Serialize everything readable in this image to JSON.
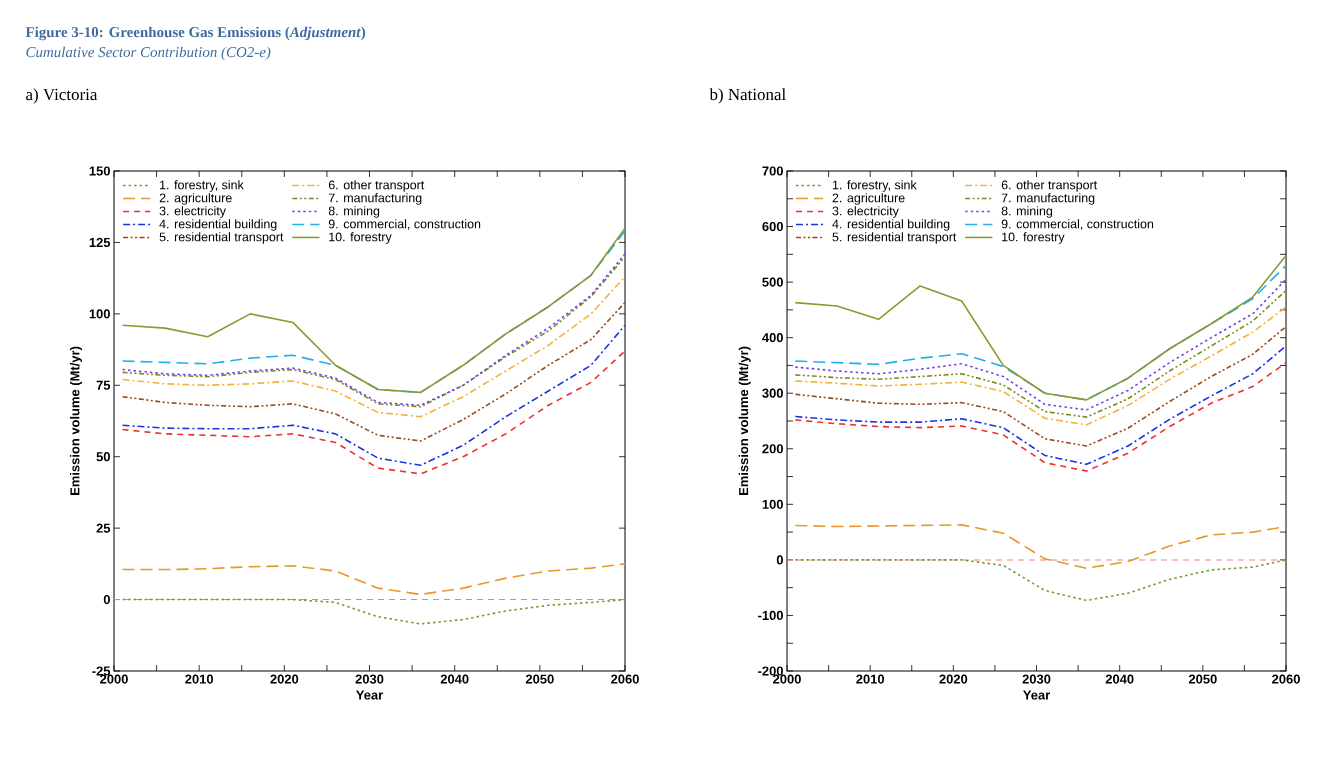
{
  "chart_data": [
    {
      "type": "line",
      "title": "a) Victoria",
      "annotations": [
        "Figure 3-10: Greenhouse Gas Emissions (*Adjustment*)",
        "Cumulative Sector Contribution (CO2-e)"
      ],
      "xlabel": "Year",
      "ylabel": "Emission volume (Mt/yr)",
      "x": [
        2001,
        2006,
        2011,
        2016,
        2021,
        2026,
        2031,
        2036,
        2041,
        2046,
        2051,
        2056,
        2060
      ],
      "xlim": [
        2000,
        2060
      ],
      "xticks": [
        2000,
        {
          "value": 2005,
          "label": null
        },
        2010,
        {
          "value": 2015,
          "label": null
        },
        2020,
        {
          "value": 2025,
          "label": null
        },
        2030,
        {
          "value": 2035,
          "label": null
        },
        2040,
        {
          "value": 2045,
          "label": null
        },
        2050,
        {
          "value": 2055,
          "label": null
        },
        2060
      ],
      "ylim": [
        -25,
        150
      ],
      "yticks": [
        -25,
        0,
        25,
        50,
        75,
        100,
        125,
        150
      ],
      "legend": "top left",
      "ref_lines": [
        {
          "axis": "y",
          "value": 0,
          "color": "#f08080",
          "line_style": "dashed"
        }
      ],
      "series": [
        {
          "name": "1. forestry, sink",
          "color": "#7a9a2a",
          "line_style": "dotted",
          "values": [
            0,
            0,
            0,
            0,
            0,
            -1,
            -6,
            -8.5,
            -7,
            -4,
            -2,
            -1,
            0
          ]
        },
        {
          "name": "2. agriculture",
          "color": "#e8982a",
          "line_style": "longdashed",
          "values": [
            10.5,
            10.5,
            10.8,
            11.5,
            11.8,
            10,
            4,
            1.8,
            4,
            7.5,
            10,
            11,
            12.5
          ]
        },
        {
          "name": "3. electricity",
          "color": "#ee3030",
          "line_style": "dashed",
          "values": [
            59.5,
            58,
            57.5,
            57,
            58,
            55,
            46,
            44,
            50,
            58,
            68,
            76,
            87
          ]
        },
        {
          "name": "4. residential building",
          "color": "#1a35e0",
          "line_style": "dashdotted",
          "values": [
            61,
            60,
            59.8,
            59.8,
            61,
            58,
            49.5,
            47,
            54,
            64,
            73,
            82,
            96
          ]
        },
        {
          "name": "5. residential transport",
          "color": "#9b4a1e",
          "line_style": "dashdotdotted",
          "values": [
            71,
            69,
            68,
            67.5,
            68.5,
            65,
            57.5,
            55.5,
            63,
            72,
            82,
            91,
            104
          ]
        },
        {
          "name": "6. other transport",
          "color": "#f5b040",
          "line_style": "dashdotted",
          "values": [
            77,
            75.5,
            75,
            75.5,
            76.5,
            73,
            65.5,
            64,
            71,
            80,
            89,
            100,
            113
          ]
        },
        {
          "name": "7. manufacturing",
          "color": "#7f8a1e",
          "line_style": "dashdotdotted",
          "values": [
            79.5,
            78.5,
            78,
            79.5,
            80.5,
            77,
            68.5,
            67.5,
            75,
            85,
            94,
            106,
            120
          ]
        },
        {
          "name": "8. mining",
          "color": "#7a40f0",
          "line_style": "dotted",
          "values": [
            80.5,
            79,
            78.5,
            80,
            81,
            77.5,
            69,
            68,
            75,
            85.5,
            95,
            106.5,
            121
          ]
        },
        {
          "name": "9. commercial, construction",
          "color": "#20b0f0",
          "line_style": "longdashed",
          "values": [
            83.5,
            83,
            82.5,
            84.5,
            85.5,
            82,
            73.5,
            72.5,
            82,
            93,
            102.5,
            113.5,
            129
          ]
        },
        {
          "name": "10. forestry",
          "color": "#8a9a30",
          "line_style": "solid",
          "values": [
            96,
            95,
            92,
            100,
            97,
            82,
            73.5,
            72.5,
            82,
            93,
            102.5,
            113.5,
            130
          ]
        }
      ]
    },
    {
      "type": "line",
      "title": "b) National",
      "xlabel": "Year",
      "ylabel": "Emission volume (Mt/yr)",
      "x": [
        2001,
        2006,
        2011,
        2016,
        2021,
        2026,
        2031,
        2036,
        2041,
        2046,
        2051,
        2056,
        2060
      ],
      "xlim": [
        2000,
        2060
      ],
      "xticks": [
        2000,
        {
          "value": 2005,
          "label": null
        },
        2010,
        {
          "value": 2015,
          "label": null
        },
        2020,
        {
          "value": 2025,
          "label": null
        },
        2030,
        {
          "value": 2035,
          "label": null
        },
        2040,
        {
          "value": 2045,
          "label": null
        },
        2050,
        {
          "value": 2055,
          "label": null
        },
        2060
      ],
      "ylim": [
        -200,
        700
      ],
      "yticks": [
        -200,
        {
          "value": -150,
          "label": null
        },
        -100,
        {
          "value": -50,
          "label": null
        },
        0,
        {
          "value": 50,
          "label": null
        },
        100,
        {
          "value": 150,
          "label": null
        },
        200,
        {
          "value": 250,
          "label": null
        },
        300,
        {
          "value": 350,
          "label": null
        },
        400,
        {
          "value": 450,
          "label": null
        },
        500,
        {
          "value": 550,
          "label": null
        },
        600,
        {
          "value": 650,
          "label": null
        },
        700
      ],
      "legend": "top left",
      "ref_lines": [
        {
          "axis": "y",
          "value": 0,
          "color": "#f08080",
          "line_style": "dashed"
        }
      ],
      "series": [
        {
          "name": "1. forestry, sink",
          "color": "#7a9a2a",
          "line_style": "dotted",
          "values": [
            0,
            0,
            0,
            0,
            0,
            -10,
            -55,
            -73,
            -60,
            -35,
            -18,
            -13,
            0
          ]
        },
        {
          "name": "2. agriculture",
          "color": "#e8982a",
          "line_style": "longdashed",
          "values": [
            62,
            60,
            61,
            62,
            63,
            48,
            2,
            -15,
            -3,
            25,
            45,
            50,
            60
          ]
        },
        {
          "name": "3. electricity",
          "color": "#ee3030",
          "line_style": "dashed",
          "values": [
            252,
            245,
            240,
            238,
            241,
            225,
            175,
            160,
            192,
            240,
            282,
            312,
            355
          ]
        },
        {
          "name": "4. residential building",
          "color": "#1a35e0",
          "line_style": "dashdotted",
          "values": [
            258,
            252,
            248,
            248,
            254,
            238,
            188,
            172,
            205,
            253,
            295,
            335,
            385
          ]
        },
        {
          "name": "5. residential transport",
          "color": "#9b4a1e",
          "line_style": "dashdotdotted",
          "values": [
            298,
            290,
            282,
            280,
            283,
            267,
            218,
            205,
            237,
            285,
            330,
            370,
            420
          ]
        },
        {
          "name": "6. other transport",
          "color": "#f5b040",
          "line_style": "dashdotted",
          "values": [
            322,
            318,
            313,
            316,
            320,
            303,
            255,
            243,
            278,
            325,
            367,
            410,
            455
          ]
        },
        {
          "name": "7. manufacturing",
          "color": "#7f8a1e",
          "line_style": "dashdotdotted",
          "values": [
            333,
            328,
            325,
            330,
            335,
            315,
            267,
            257,
            290,
            340,
            385,
            430,
            485
          ]
        },
        {
          "name": "8. mining",
          "color": "#7a40f0",
          "line_style": "dotted",
          "values": [
            347,
            340,
            335,
            343,
            353,
            330,
            280,
            270,
            305,
            355,
            400,
            443,
            505
          ]
        },
        {
          "name": "9. commercial, construction",
          "color": "#20b0f0",
          "line_style": "longdashed",
          "values": [
            358,
            355,
            352,
            363,
            371,
            348,
            300,
            288,
            327,
            380,
            425,
            470,
            530
          ]
        },
        {
          "name": "10. forestry",
          "color": "#8a9a30",
          "line_style": "solid",
          "values": [
            463,
            457,
            433,
            493,
            466,
            350,
            300,
            288,
            327,
            380,
            425,
            473,
            548
          ]
        }
      ]
    }
  ]
}
